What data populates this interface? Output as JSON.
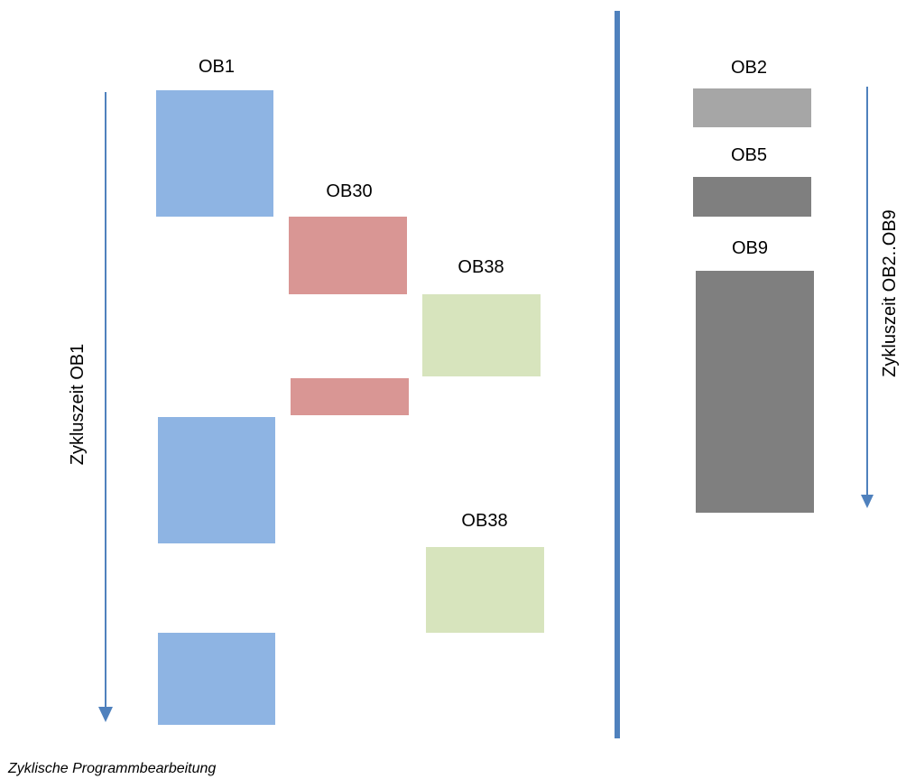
{
  "colors": {
    "ob1": "#8EB4E3",
    "ob30": "#D99694",
    "ob38": "#D7E4BD",
    "ob2": "#A6A6A6",
    "ob5": "#7F7F7F",
    "ob9": "#7F7F7F",
    "arrow": "#4F81BD",
    "divider": "#4F81BD"
  },
  "labels": {
    "ob1": "OB1",
    "ob30": "OB30",
    "ob38_top": "OB38",
    "ob38_bottom": "OB38",
    "ob2": "OB2",
    "ob5": "OB5",
    "ob9": "OB9"
  },
  "axes": {
    "left_arrow_label": "Zykluszeit OB1",
    "right_arrow_label": "Zykluszeit OB2..OB9"
  },
  "caption": "Zyklische Programmbearbeitung"
}
